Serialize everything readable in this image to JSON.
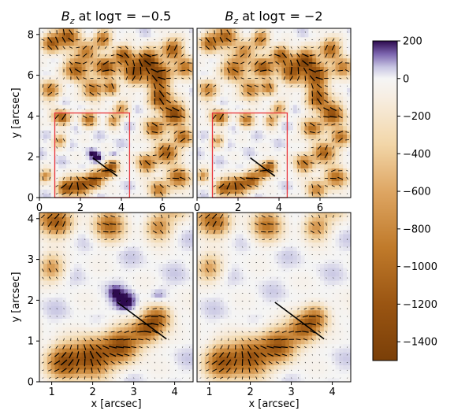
{
  "chart_data": {
    "type": "heatmap",
    "panels": [
      {
        "id": "top-left",
        "title_prefix": "B",
        "title_sub": "z",
        "title_suffix": " at logτ = −0.5",
        "xlim": [
          0,
          7.5
        ],
        "ylim": [
          0,
          8.3
        ],
        "xticks": [
          {
            "v": 0,
            "t": "0"
          },
          {
            "v": 2,
            "t": "2"
          },
          {
            "v": 4,
            "t": "4"
          },
          {
            "v": 6,
            "t": "6"
          }
        ],
        "yticks": [
          {
            "v": 0,
            "t": "0"
          },
          {
            "v": 2,
            "t": "2"
          },
          {
            "v": 4,
            "t": "4"
          },
          {
            "v": 6,
            "t": "6"
          },
          {
            "v": 8,
            "t": "8"
          }
        ],
        "ylabel": "y [arcsec]",
        "xlabel": "",
        "roi_box": {
          "x": [
            0.75,
            4.4
          ],
          "y": [
            0,
            4.15
          ]
        },
        "cut_line": {
          "x": [
            2.6,
            3.8
          ],
          "y": [
            1.95,
            1.05
          ]
        }
      },
      {
        "id": "top-right",
        "title_prefix": "B",
        "title_sub": "z",
        "title_suffix": " at logτ = −2",
        "xlim": [
          0,
          7.5
        ],
        "ylim": [
          0,
          8.3
        ],
        "xticks": [
          {
            "v": 0,
            "t": "0"
          },
          {
            "v": 2,
            "t": "2"
          },
          {
            "v": 4,
            "t": "4"
          },
          {
            "v": 6,
            "t": "6"
          }
        ],
        "yticks": [],
        "ylabel": "",
        "xlabel": "",
        "roi_box": {
          "x": [
            0.75,
            4.4
          ],
          "y": [
            0,
            4.15
          ]
        },
        "cut_line": {
          "x": [
            2.6,
            3.8
          ],
          "y": [
            1.95,
            1.05
          ]
        }
      },
      {
        "id": "bottom-left",
        "title_prefix": "",
        "title_sub": "",
        "title_suffix": "",
        "xlim": [
          0.7,
          4.45
        ],
        "ylim": [
          0,
          4.15
        ],
        "xticks": [
          {
            "v": 1,
            "t": "1"
          },
          {
            "v": 2,
            "t": "2"
          },
          {
            "v": 3,
            "t": "3"
          },
          {
            "v": 4,
            "t": "4"
          }
        ],
        "yticks": [
          {
            "v": 0,
            "t": "0"
          },
          {
            "v": 1,
            "t": "1"
          },
          {
            "v": 2,
            "t": "2"
          },
          {
            "v": 3,
            "t": "3"
          },
          {
            "v": 4,
            "t": "4"
          }
        ],
        "ylabel": "y [arcsec]",
        "xlabel": "x [arcsec]",
        "cut_line": {
          "x": [
            2.6,
            3.8
          ],
          "y": [
            1.95,
            1.05
          ]
        }
      },
      {
        "id": "bottom-right",
        "title_prefix": "",
        "title_sub": "",
        "title_suffix": "",
        "xlim": [
          0.7,
          4.45
        ],
        "ylim": [
          0,
          4.15
        ],
        "xticks": [
          {
            "v": 1,
            "t": "1"
          },
          {
            "v": 2,
            "t": "2"
          },
          {
            "v": 3,
            "t": "3"
          },
          {
            "v": 4,
            "t": "4"
          }
        ],
        "yticks": [],
        "ylabel": "",
        "xlabel": "x [arcsec]",
        "cut_line": {
          "x": [
            2.6,
            3.8
          ],
          "y": [
            1.95,
            1.05
          ]
        }
      }
    ],
    "colorbar": {
      "range": [
        -1500,
        200
      ],
      "ticks": [
        {
          "v": 200,
          "t": "200"
        },
        {
          "v": 0,
          "t": "0"
        },
        {
          "v": -200,
          "t": "−200"
        },
        {
          "v": -400,
          "t": "−400"
        },
        {
          "v": -600,
          "t": "−600"
        },
        {
          "v": -800,
          "t": "−800"
        },
        {
          "v": -1000,
          "t": "−1000"
        },
        {
          "v": -1200,
          "t": "−1200"
        },
        {
          "v": -1400,
          "t": "−1400"
        }
      ],
      "stops": [
        {
          "v": -1500,
          "c": "#7a3f08"
        },
        {
          "v": -1200,
          "c": "#9a5512"
        },
        {
          "v": -900,
          "c": "#c07a2a"
        },
        {
          "v": -600,
          "c": "#dea663"
        },
        {
          "v": -350,
          "c": "#f2d6a8"
        },
        {
          "v": -100,
          "c": "#f7eee2"
        },
        {
          "v": 0,
          "c": "#f5f5f5"
        },
        {
          "v": 60,
          "c": "#c8c6e3"
        },
        {
          "v": 130,
          "c": "#7d66b0"
        },
        {
          "v": 200,
          "c": "#2d0a4e"
        }
      ]
    }
  },
  "colors": {
    "roi_box": "#e8333a",
    "vectors": "#000000",
    "cut_line": "#000000"
  }
}
